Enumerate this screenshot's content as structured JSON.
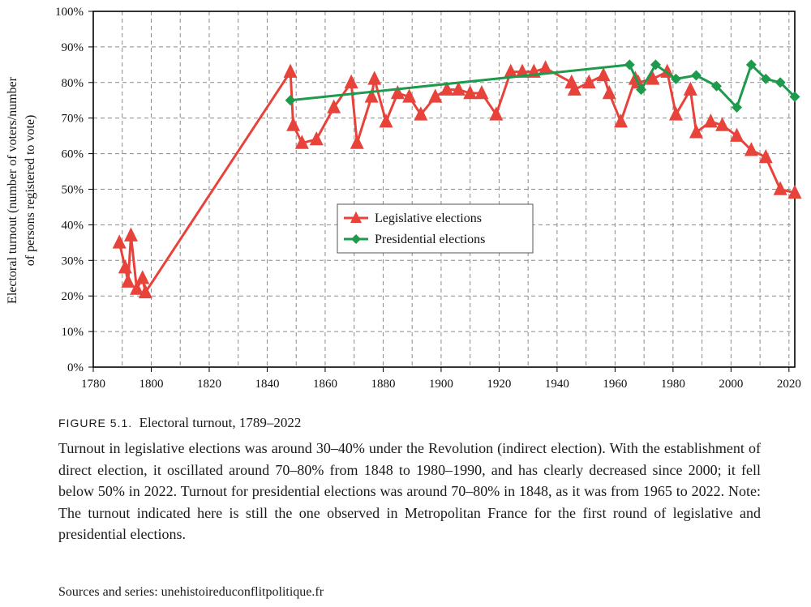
{
  "caption": {
    "figure_label": "FIGURE 5.1.",
    "figure_title": "Electoral turnout, 1789–2022",
    "description": "Turnout in legislative elections was around 30–40% under the Revolution (indirect election). With the establishment of direct election, it oscillated around 70–80% from 1848 to 1980–1990, and has clearly decreased since 2000; it fell below 50% in 2022. Turnout for presidential elections was around 70–80% in 1848, as it was from 1965 to 2022. Note: The turnout indicated here is still the one observed in Metropolitan France for the first round of legislative and presidential elections.",
    "sources": "Sources and series: unehistoireduconflitpolitique.fr"
  },
  "chart_data": {
    "type": "line",
    "ylabel_line1": "Electoral turnout (number of voters/number",
    "ylabel_line2": "of persons registered to vote)",
    "xlim": [
      1780,
      2022
    ],
    "ylim": [
      0,
      100
    ],
    "x_ticks": [
      "1780",
      "1800",
      "1820",
      "1840",
      "1860",
      "1880",
      "1900",
      "1920",
      "1940",
      "1960",
      "1980",
      "2000",
      "2020"
    ],
    "y_ticks": [
      "0%",
      "10%",
      "20%",
      "30%",
      "40%",
      "50%",
      "60%",
      "70%",
      "80%",
      "90%",
      "100%"
    ],
    "grid": true,
    "legend_position": "center",
    "series": [
      {
        "name": "Legislative elections",
        "color": "#e8433a",
        "marker": "triangle",
        "points": [
          [
            1789,
            35
          ],
          [
            1791,
            28
          ],
          [
            1792,
            24
          ],
          [
            1793,
            37
          ],
          [
            1795,
            22
          ],
          [
            1797,
            25
          ],
          [
            1798,
            21
          ],
          [
            1848,
            83
          ],
          [
            1849,
            68
          ],
          [
            1852,
            63
          ],
          [
            1857,
            64
          ],
          [
            1863,
            73
          ],
          [
            1869,
            80
          ],
          [
            1871,
            63
          ],
          [
            1876,
            76
          ],
          [
            1877,
            81
          ],
          [
            1881,
            69
          ],
          [
            1885,
            77
          ],
          [
            1889,
            76
          ],
          [
            1893,
            71
          ],
          [
            1898,
            76
          ],
          [
            1902,
            78
          ],
          [
            1906,
            78
          ],
          [
            1910,
            77
          ],
          [
            1914,
            77
          ],
          [
            1919,
            71
          ],
          [
            1924,
            83
          ],
          [
            1928,
            83
          ],
          [
            1932,
            83
          ],
          [
            1936,
            84
          ],
          [
            1945,
            80
          ],
          [
            1946,
            78
          ],
          [
            1951,
            80
          ],
          [
            1956,
            82
          ],
          [
            1958,
            77
          ],
          [
            1962,
            69
          ],
          [
            1967,
            81
          ],
          [
            1968,
            80
          ],
          [
            1973,
            81
          ],
          [
            1978,
            83
          ],
          [
            1981,
            71
          ],
          [
            1986,
            78
          ],
          [
            1988,
            66
          ],
          [
            1993,
            69
          ],
          [
            1997,
            68
          ],
          [
            2002,
            65
          ],
          [
            2007,
            61
          ],
          [
            2012,
            59
          ],
          [
            2017,
            50
          ],
          [
            2022,
            49
          ]
        ]
      },
      {
        "name": "Presidential elections",
        "color": "#1e9a4c",
        "marker": "diamond",
        "points": [
          [
            1848,
            75
          ],
          [
            1965,
            85
          ],
          [
            1969,
            78
          ],
          [
            1974,
            85
          ],
          [
            1981,
            81
          ],
          [
            1988,
            82
          ],
          [
            1995,
            79
          ],
          [
            2002,
            73
          ],
          [
            2007,
            85
          ],
          [
            2012,
            81
          ],
          [
            2017,
            80
          ],
          [
            2022,
            76
          ]
        ]
      }
    ]
  }
}
